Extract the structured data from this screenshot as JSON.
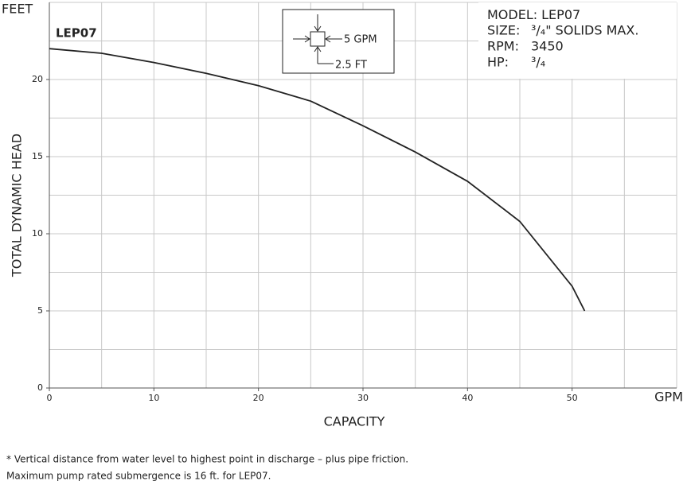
{
  "chart_data": {
    "type": "line",
    "y_unit": "FEET",
    "x_unit": "GPM",
    "y_label": "TOTAL DYNAMIC HEAD",
    "x_label": "CAPACITY",
    "xlim": [
      0,
      60
    ],
    "ylim": [
      0,
      25
    ],
    "xticks": [
      0,
      10,
      20,
      30,
      40,
      50
    ],
    "yticks": [
      0,
      5,
      10,
      15,
      20
    ],
    "xgrid": [
      5,
      10,
      15,
      20,
      25,
      30,
      35,
      40,
      45,
      50,
      55,
      60
    ],
    "ygrid": [
      2.5,
      5,
      7.5,
      10,
      12.5,
      15,
      17.5,
      20,
      22.5,
      25
    ],
    "series": [
      {
        "name": "LEP07",
        "color": "#222222",
        "x": [
          0,
          5,
          10,
          15,
          20,
          25,
          30,
          35,
          40,
          45,
          50,
          51.2
        ],
        "values": [
          22,
          21.7,
          21.1,
          20.4,
          19.6,
          18.6,
          17,
          15.3,
          13.4,
          10.8,
          6.6,
          5
        ]
      }
    ],
    "scale_key": {
      "x": "5 GPM",
      "y": "2.5 FT"
    },
    "spec": [
      {
        "label": "MODEL:",
        "value": "LEP07"
      },
      {
        "label": "SIZE:",
        "value": "³/₄\" SOLIDS MAX."
      },
      {
        "label": "RPM:",
        "value": "3450"
      },
      {
        "label": "HP:",
        "value": "³/₄"
      }
    ]
  },
  "notes": [
    "* Vertical distance from water level to highest point in discharge – plus pipe friction.",
    "Maximum pump rated submergence is 16 ft. for LEP07."
  ]
}
